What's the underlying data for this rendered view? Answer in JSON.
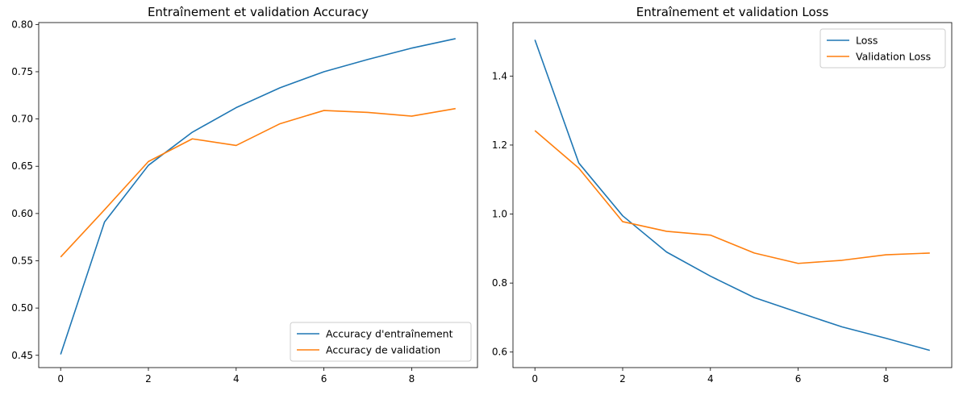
{
  "chart_data": [
    {
      "type": "line",
      "title": "Entraînement et validation Accuracy",
      "xlabel": "",
      "ylabel": "",
      "x": [
        0,
        1,
        2,
        3,
        4,
        5,
        6,
        7,
        8,
        9
      ],
      "xlim": [
        -0.5,
        9.5
      ],
      "ylim": [
        0.437,
        0.802
      ],
      "xticks": [
        0,
        2,
        4,
        6,
        8
      ],
      "yticks": [
        0.45,
        0.5,
        0.55,
        0.6,
        0.65,
        0.7,
        0.75,
        0.8
      ],
      "ytick_labels": [
        "0.45",
        "0.50",
        "0.55",
        "0.60",
        "0.65",
        "0.70",
        "0.75",
        "0.80"
      ],
      "grid": false,
      "legend_position": "bottom-right",
      "series": [
        {
          "name": "Accuracy d'entraînement",
          "color": "#1f77b4",
          "values": [
            0.451,
            0.591,
            0.651,
            0.686,
            0.712,
            0.733,
            0.75,
            0.763,
            0.775,
            0.785
          ]
        },
        {
          "name": "Accuracy de validation",
          "color": "#ff7f0e",
          "values": [
            0.554,
            0.604,
            0.655,
            0.679,
            0.672,
            0.695,
            0.709,
            0.707,
            0.703,
            0.711
          ]
        }
      ]
    },
    {
      "type": "line",
      "title": "Entraînement et validation Loss",
      "xlabel": "",
      "ylabel": "",
      "x": [
        0,
        1,
        2,
        3,
        4,
        5,
        6,
        7,
        8,
        9
      ],
      "xlim": [
        -0.5,
        9.5
      ],
      "ylim": [
        0.555,
        1.555
      ],
      "xticks": [
        0,
        2,
        4,
        6,
        8
      ],
      "yticks": [
        0.6,
        0.8,
        1.0,
        1.2,
        1.4
      ],
      "ytick_labels": [
        "0.6",
        "0.8",
        "1.0",
        "1.2",
        "1.4"
      ],
      "grid": false,
      "legend_position": "top-right",
      "series": [
        {
          "name": "Loss",
          "color": "#1f77b4",
          "values": [
            1.505,
            1.148,
            0.995,
            0.89,
            0.82,
            0.758,
            0.715,
            0.673,
            0.64,
            0.605
          ]
        },
        {
          "name": "Validation Loss",
          "color": "#ff7f0e",
          "values": [
            1.242,
            1.133,
            0.978,
            0.95,
            0.939,
            0.887,
            0.857,
            0.866,
            0.882,
            0.887
          ]
        }
      ]
    }
  ]
}
